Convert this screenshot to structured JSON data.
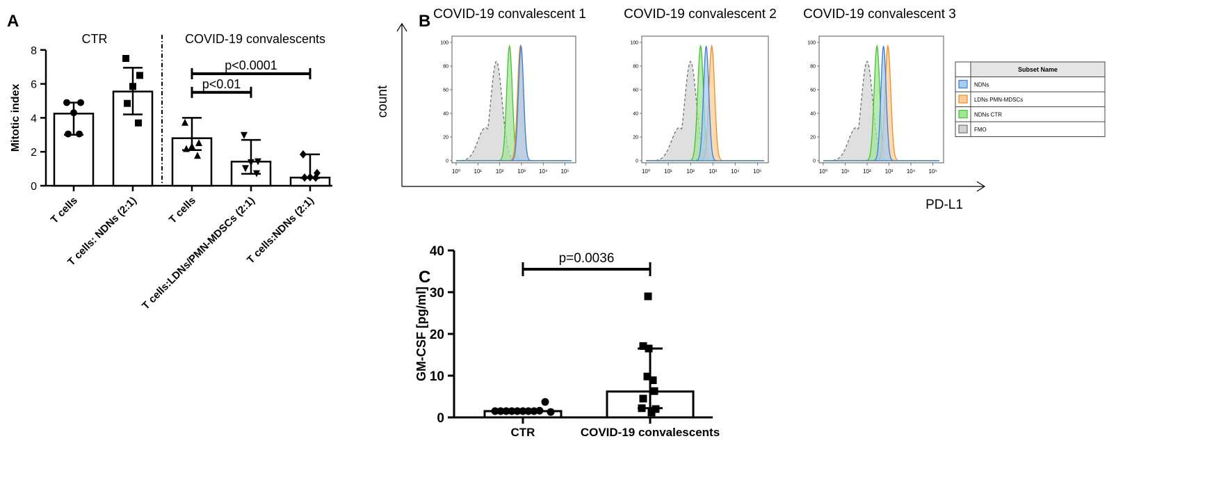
{
  "chart_data": [
    {
      "panel": "A",
      "type": "bar",
      "ylabel": "Mitotic index",
      "ylim": [
        0,
        8
      ],
      "yticks": [
        "0",
        "2",
        "4",
        "6",
        "8"
      ],
      "groups": [
        "CTR",
        "COVID-19 convalescents"
      ],
      "categories": [
        "T cells",
        "T cells: NDNs (2:1)",
        "T cells",
        "T cells:LDNs/PMN-MDSCs (2:1)",
        "T cells:NDNs (2:1)"
      ],
      "values": [
        4.25,
        5.55,
        2.8,
        1.42,
        0.48
      ],
      "err_hi": [
        4.9,
        6.95,
        4.0,
        2.7,
        1.85
      ],
      "err_lo": [
        3.0,
        4.2,
        2.1,
        0.7,
        0.45
      ],
      "points": [
        [
          4.9,
          4.9,
          4.3,
          3.05,
          3.05
        ],
        [
          7.5,
          6.5,
          5.85,
          4.85,
          3.7
        ],
        [
          3.7,
          2.5,
          2.3,
          2.15,
          1.75
        ],
        [
          3.0,
          1.45,
          1.4,
          1.05,
          0.75
        ],
        [
          1.85,
          0.75,
          0.5,
          0.48,
          0.47
        ]
      ],
      "markers": [
        "circle",
        "square",
        "triangle-up",
        "triangle-down",
        "diamond"
      ],
      "comparisons": [
        {
          "from": 2,
          "to": 3,
          "y": 5.5,
          "label": "p<0.01"
        },
        {
          "from": 2,
          "to": 4,
          "y": 6.6,
          "label": "p<0.0001"
        }
      ]
    },
    {
      "panel": "B",
      "type": "area",
      "xlabel": "PD-L1",
      "ylabel": "count",
      "x_tick_labels": [
        "10⁰",
        "10¹",
        "10²",
        "10³",
        "10⁴",
        "10⁵"
      ],
      "y_tick_labels": [
        "0",
        "20",
        "40",
        "60",
        "80",
        "100"
      ],
      "ylim": [
        0,
        100
      ],
      "subplots": [
        {
          "title": "COVID-19 convalescent 1",
          "peaks": {
            "FMO": 1.85,
            "NDNs CTR": 2.45,
            "LDNs PMN-MDSCs": 2.95,
            "NDNs": 2.98
          }
        },
        {
          "title": "COVID-19 convalescent 2",
          "peaks": {
            "FMO": 2.0,
            "NDNs CTR": 2.45,
            "LDNs PMN-MDSCs": 2.95,
            "NDNs": 2.7
          }
        },
        {
          "title": "COVID-19 convalescent 3",
          "peaks": {
            "FMO": 2.0,
            "NDNs CTR": 2.45,
            "LDNs PMN-MDSCs": 2.95,
            "NDNs": 2.75
          }
        }
      ],
      "legend": {
        "header": "Subset Name",
        "entries": [
          {
            "name": "NDNs",
            "fill": "#a9cbee",
            "stroke": "#3b7fd4"
          },
          {
            "name": "LDNs PMN-MDSCs",
            "fill": "#f9cd9b",
            "stroke": "#f08c1e"
          },
          {
            "name": "NDNs CTR",
            "fill": "#a6e39a",
            "stroke": "#3fc32a"
          },
          {
            "name": "FMO",
            "fill": "#d2d2d2",
            "stroke": "#707070"
          }
        ]
      }
    },
    {
      "panel": "C",
      "type": "bar",
      "ylabel": "GM-CSF [pg/ml]",
      "ylim": [
        0,
        40
      ],
      "yticks": [
        "0",
        "10",
        "20",
        "30",
        "40"
      ],
      "categories": [
        "CTR",
        "COVID-19 convalescents"
      ],
      "values": [
        1.5,
        6.2
      ],
      "err_hi": [
        1.7,
        16.5
      ],
      "err_lo": [
        1.3,
        2.2
      ],
      "points": [
        [
          1.5,
          1.5,
          1.5,
          1.5,
          1.5,
          1.5,
          1.5,
          1.5,
          1.6,
          3.7,
          1.3
        ],
        [
          29.0,
          17.1,
          16.5,
          9.8,
          8.9,
          6.3,
          4.5,
          2.2,
          2.0,
          1.2
        ]
      ],
      "markers": [
        "circle",
        "square"
      ],
      "comparisons": [
        {
          "from": 0,
          "to": 1,
          "y": 35.5,
          "label": "p=0.0036"
        }
      ]
    }
  ],
  "panel_letters": [
    "A",
    "B",
    "C"
  ]
}
